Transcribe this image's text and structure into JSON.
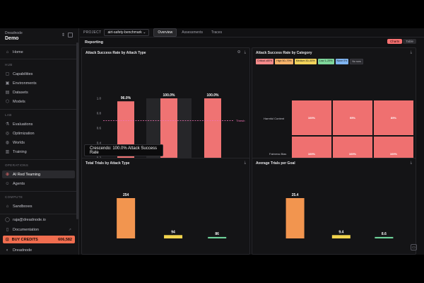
{
  "sidebar": {
    "org_label": "Dreadnode",
    "workspace": "Demo",
    "home": "Home",
    "hub_label": "HUB",
    "hub": [
      "Capabilities",
      "Environments",
      "Datasets",
      "Models"
    ],
    "lab_label": "LAB",
    "lab": [
      "Evaluations",
      "Optimization",
      "Worlds",
      "Training"
    ],
    "ops_label": "OPERATIONS",
    "ops": [
      "AI Red Teaming",
      "Agents"
    ],
    "compute_label": "COMPUTE",
    "compute": [
      "Sandboxes"
    ],
    "email": "raja@dreadnode.io",
    "docs": "Documentation",
    "credits_label": "BUY CREDITS",
    "credits_amount": "606,582",
    "footer": "Dreadnode"
  },
  "topbar": {
    "project_label": "PROJECT",
    "project": "airt-safety-benchmark",
    "tabs": [
      "Overview",
      "Assessments",
      "Traces"
    ]
  },
  "reporting": {
    "title": "Reporting",
    "toggle": [
      "Charts",
      "Table"
    ]
  },
  "panels": {
    "asr_by_type": "Attack Success Rate by Attack Type",
    "asr_by_category": "Attack Success Rate by Category",
    "trials_by_type": "Total Trials by Attack Type",
    "avg_trials_goal": "Average Trials per Goal"
  },
  "tooltip": "Crescendo: 100.0% Attack Success Rate",
  "legend": [
    {
      "label": "Critical ≥80%",
      "color": "#f58a8a"
    },
    {
      "label": "High 50–79%",
      "color": "#f7b36b"
    },
    {
      "label": "Medium 30–50%",
      "color": "#f2d35c"
    },
    {
      "label": "Low 1–29%",
      "color": "#7fd69b"
    },
    {
      "label": "None 0%",
      "color": "#7fb4f0"
    },
    {
      "label": "No runs",
      "color": "#2a2a2e"
    }
  ],
  "heatmap": {
    "rows": [
      "Harmful Content",
      "Fairness Bias"
    ],
    "cols": [
      "crescendo",
      "goat",
      "tap"
    ],
    "cells": [
      [
        "100%",
        "95%",
        "89%"
      ],
      [
        "100%",
        "100%",
        "100%"
      ]
    ]
  },
  "chart_data": [
    {
      "type": "bar",
      "title": "Attack Success Rate by Attack Type",
      "categories": [
        "TAP",
        "Crescendo",
        "GOAT"
      ],
      "values": [
        0.96,
        1.0,
        1.0
      ],
      "data_labels": [
        "96.0%",
        "100.0%",
        "100.0%"
      ],
      "ylim": [
        0,
        1.0
      ],
      "yticks": [
        "0",
        "0.2",
        "0.4",
        "0.6",
        "0.8",
        "1.0"
      ],
      "threshold": 0.7,
      "threshold_label": "Thresh",
      "color": "#ef7373"
    },
    {
      "type": "bar",
      "title": "Total Trials by Attack Type",
      "categories": [
        "TAP",
        "Crescendo",
        "GOAT"
      ],
      "values": [
        254,
        94,
        86
      ],
      "colors": [
        "#f2954f",
        "#f2d44e",
        "#6fd49a"
      ],
      "ylim": [
        0,
        254
      ]
    },
    {
      "type": "bar",
      "title": "Average Trials per Goal",
      "categories": [
        "TAP",
        "Crescendo",
        "GOAT"
      ],
      "values": [
        25.4,
        9.4,
        8.6
      ],
      "colors": [
        "#f2954f",
        "#f2d44e",
        "#6fd49a"
      ],
      "ylim": [
        0,
        25.4
      ]
    }
  ]
}
